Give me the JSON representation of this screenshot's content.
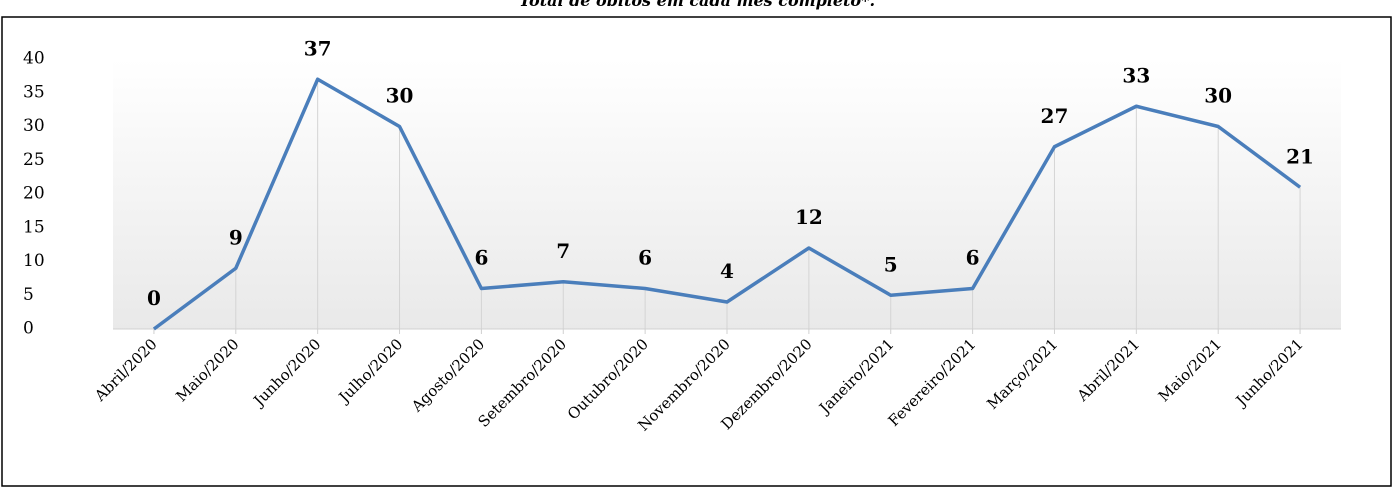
{
  "chart_data": {
    "type": "line",
    "title": "Total de óbitos em cada mês completo*.",
    "categories": [
      "Abril/2020",
      "Maio/2020",
      "Junho/2020",
      "Julho/2020",
      "Agosto/2020",
      "Setembro/2020",
      "Outubro/2020",
      "Novembro/2020",
      "Dezembro/2020",
      "Janeiro/2021",
      "Fevereiro/2021",
      "Março/2021",
      "Abril/2021",
      "Maio/2021",
      "Junho/2021"
    ],
    "values": [
      0,
      9,
      37,
      30,
      6,
      7,
      6,
      4,
      12,
      5,
      6,
      27,
      33,
      30,
      21
    ],
    "color": "#4a7ebb",
    "ylim": [
      0,
      40
    ],
    "yticks": [
      0,
      5,
      10,
      15,
      20,
      25,
      30,
      35,
      40
    ],
    "grid": true
  }
}
